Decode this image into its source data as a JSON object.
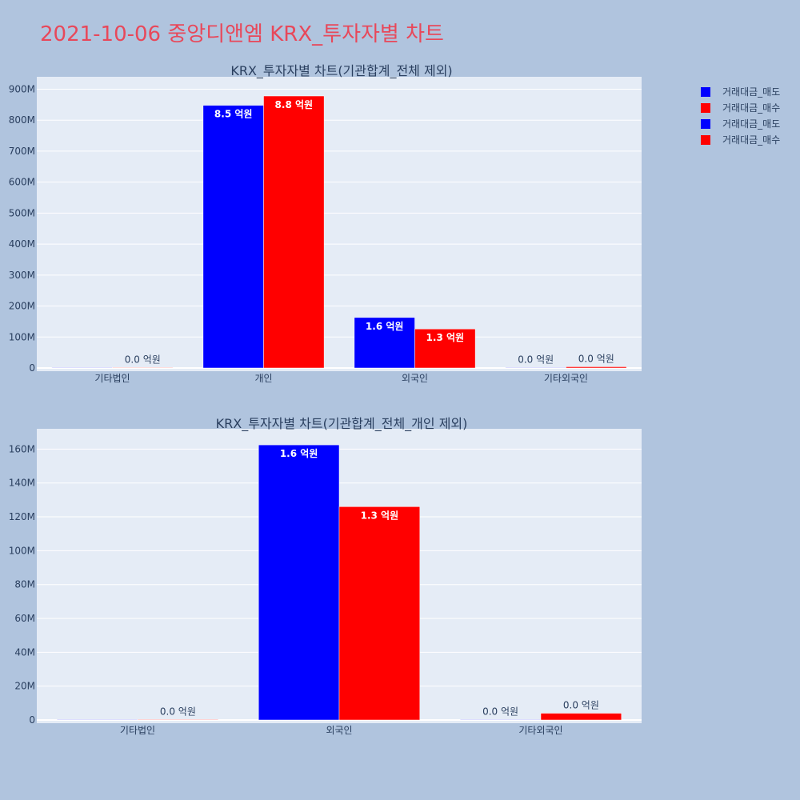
{
  "title": "2021-10-06 중앙디앤엠 KRX_투자자별 차트",
  "colors": {
    "sell": "#0000ff",
    "buy": "#ff0000",
    "plot_bg": "#e5ecf6",
    "page_bg": "#b0c4de",
    "title": "#e8485a"
  },
  "legend": [
    {
      "name": "거래대금_매도",
      "color": "#0000ff"
    },
    {
      "name": "거래대금_매수",
      "color": "#ff0000"
    },
    {
      "name": "거래대금_매도",
      "color": "#0000ff"
    },
    {
      "name": "거래대금_매수",
      "color": "#ff0000"
    }
  ],
  "chart_data": [
    {
      "type": "bar",
      "title": "KRX_투자자별 차트(기관합계_전체 제외)",
      "categories": [
        "기타법인",
        "개인",
        "외국인",
        "기타외국인"
      ],
      "series": [
        {
          "name": "거래대금_매도",
          "color": "#0000ff",
          "values": [
            0,
            848000000,
            163000000,
            0
          ],
          "labels": [
            "",
            "8.5 억원",
            "1.6 억원",
            "0.0 억원"
          ]
        },
        {
          "name": "거래대금_매수",
          "color": "#ff0000",
          "values": [
            300000,
            878000000,
            126000000,
            4000000
          ],
          "labels": [
            "0.0 억원",
            "8.8 억원",
            "1.3 억원",
            "0.0 억원"
          ]
        }
      ],
      "ylim": [
        0,
        940000000
      ],
      "yticks": [
        0,
        100000000,
        200000000,
        300000000,
        400000000,
        500000000,
        600000000,
        700000000,
        800000000,
        900000000
      ],
      "ytick_labels": [
        "0",
        "100M",
        "200M",
        "300M",
        "400M",
        "500M",
        "600M",
        "700M",
        "800M",
        "900M"
      ],
      "grid": true,
      "legend_position": "top-right"
    },
    {
      "type": "bar",
      "title": "KRX_투자자별 차트(기관합계_전체_개인 제외)",
      "categories": [
        "기타법인",
        "외국인",
        "기타외국인"
      ],
      "series": [
        {
          "name": "거래대금_매도",
          "color": "#0000ff",
          "values": [
            0,
            162500000,
            200000
          ],
          "labels": [
            "",
            "1.6 억원",
            "0.0 억원"
          ]
        },
        {
          "name": "거래대금_매수",
          "color": "#ff0000",
          "values": [
            300000,
            126000000,
            4000000
          ],
          "labels": [
            "0.0 억원",
            "1.3 억원",
            "0.0 억원"
          ]
        }
      ],
      "ylim": [
        0,
        172000000
      ],
      "yticks": [
        0,
        20000000,
        40000000,
        60000000,
        80000000,
        100000000,
        120000000,
        140000000,
        160000000
      ],
      "ytick_labels": [
        "0",
        "20M",
        "40M",
        "60M",
        "80M",
        "100M",
        "120M",
        "140M",
        "160M"
      ],
      "grid": true
    }
  ]
}
